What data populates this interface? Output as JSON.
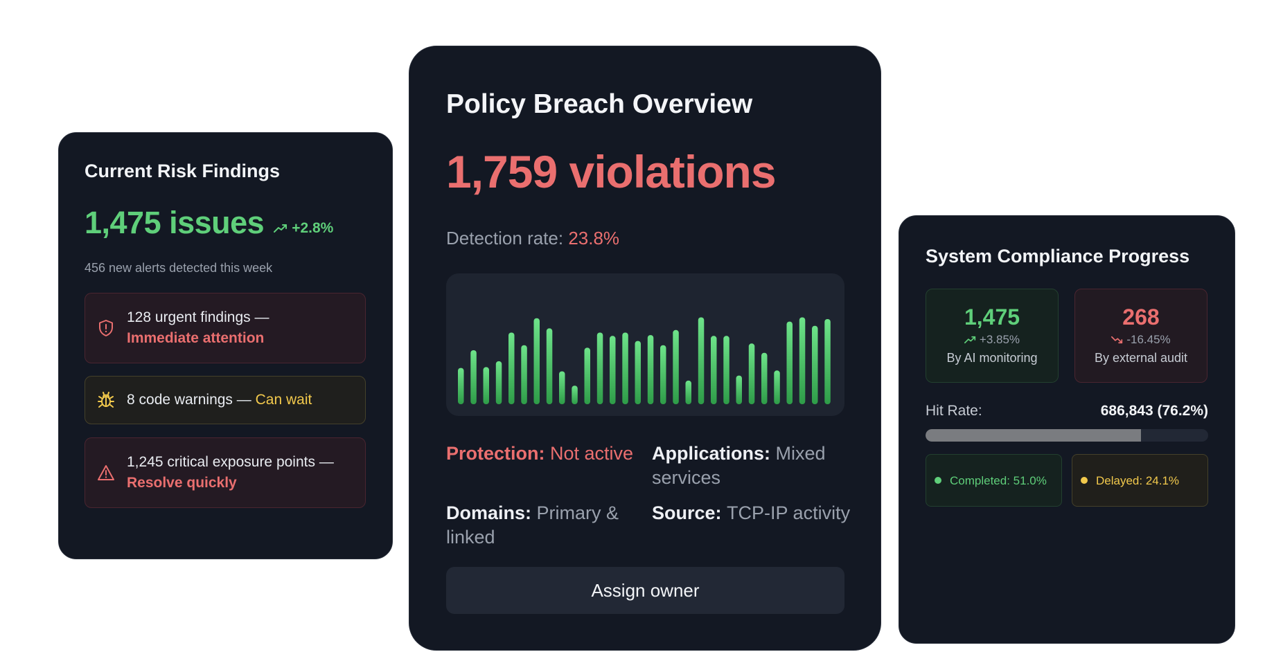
{
  "colors": {
    "green": "#5fcf7a",
    "red": "#ea6f6f",
    "yellow": "#f2c94c",
    "card_bg": "#131823"
  },
  "risk": {
    "title": "Current Risk Findings",
    "issues_value": "1,475 issues",
    "issues_delta": "+2.8%",
    "subtitle": "456 new alerts detected this week",
    "items": [
      {
        "icon": "shield-alert-icon",
        "text": "128 urgent findings — ",
        "highlight": "Immediate attention"
      },
      {
        "icon": "bug-icon",
        "text": "8 code warnings — ",
        "highlight": "Can wait"
      },
      {
        "icon": "warning-triangle-icon",
        "text": "1,245 critical exposure points — ",
        "highlight": "Resolve quickly"
      }
    ]
  },
  "policy": {
    "title": "Policy Breach Overview",
    "violations": "1,759 violations",
    "detection_label": "Detection rate: ",
    "detection_value": "23.8%",
    "meta": {
      "protection_key": "Protection: ",
      "protection_value": "Not active",
      "applications_key": "Applications: ",
      "applications_value": "Mixed services",
      "domains_key": "Domains: ",
      "domains_value": "Primary & linked",
      "source_key": "Source: ",
      "source_value": "TCP-IP activity"
    },
    "assign_label": "Assign owner"
  },
  "chart_data": {
    "type": "bar",
    "values": [
      43,
      64,
      44,
      51,
      85,
      70,
      102,
      90,
      39,
      22,
      67,
      85,
      81,
      85,
      75,
      82,
      70,
      88,
      28,
      103,
      81,
      81,
      34,
      72,
      61,
      40,
      98,
      103,
      93,
      101
    ],
    "ylim": [
      0,
      110
    ],
    "grid": false
  },
  "compliance": {
    "title": "System Compliance Progress",
    "ai": {
      "value": "1,475",
      "change": "+3.85%",
      "label": "By AI monitoring"
    },
    "audit": {
      "value": "268",
      "change": "-16.45%",
      "label": "By external audit"
    },
    "hit_label": "Hit Rate:",
    "hit_value": "686,843 (76.2%)",
    "hit_fraction": 0.762,
    "completed": "Completed: 51.0%",
    "delayed": "Delayed: 24.1%"
  }
}
